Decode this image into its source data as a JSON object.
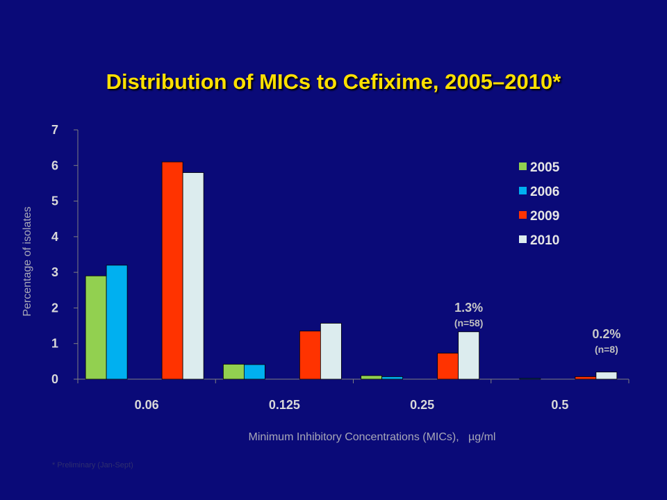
{
  "title": "Distribution of MICs to Cefixime, 2005–2010*",
  "footnote": "* Preliminary (Jan-Sept)",
  "chart_data": {
    "type": "bar",
    "xlabel": "Minimum Inhibitory Concentrations (MICs),   µg/ml",
    "ylabel": "Percentage of isolates",
    "ylim": [
      0,
      7
    ],
    "yticks": [
      0,
      1,
      2,
      3,
      4,
      5,
      6,
      7
    ],
    "categories": [
      "0.06",
      "0.125",
      "0.25",
      "0.5"
    ],
    "legend_position": "right",
    "series": [
      {
        "name": "2005",
        "color": "#92d050",
        "values": [
          2.9,
          0.42,
          0.1,
          0
        ]
      },
      {
        "name": "2006",
        "color": "#00b0f0",
        "values": [
          3.2,
          0.41,
          0.07,
          0.02
        ]
      },
      {
        "name": "2009",
        "color": "#ff3300",
        "values": [
          6.1,
          1.35,
          0.73,
          0.07
        ]
      },
      {
        "name": "2010",
        "color": "#dcecee",
        "values": [
          5.8,
          1.57,
          1.33,
          0.2
        ]
      }
    ],
    "annotations": [
      {
        "category": "0.25",
        "series": "2010",
        "text": "1.3%",
        "subtext": "(n=58)"
      },
      {
        "category": "0.5",
        "series": "2010",
        "text": "0.2%",
        "subtext": "(n=8)"
      }
    ]
  }
}
